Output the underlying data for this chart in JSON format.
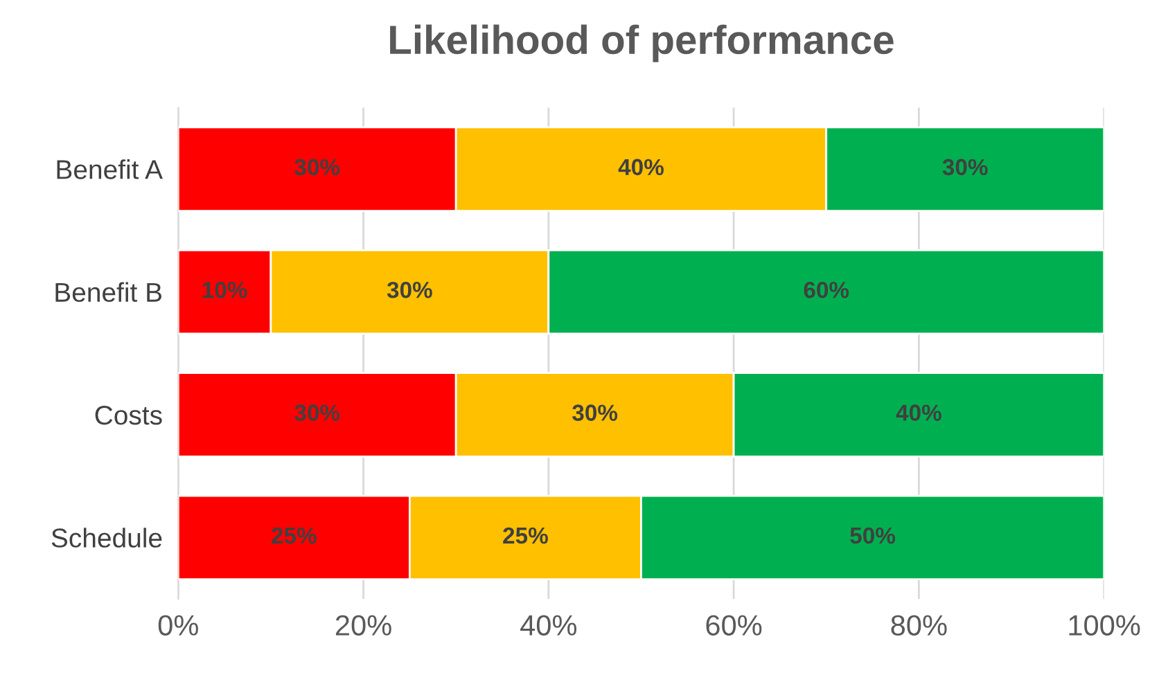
{
  "chart_data": {
    "type": "bar",
    "title": "Likelihood of performance",
    "orientation": "horizontal",
    "stacked": true,
    "categories": [
      "Benefit A",
      "Benefit B",
      "Costs",
      "Schedule"
    ],
    "series": [
      {
        "color": "#ff0000",
        "values": [
          30,
          10,
          30,
          25
        ],
        "value_labels": [
          "30%",
          "10%",
          "30%",
          "25%"
        ]
      },
      {
        "color": "#ffc000",
        "values": [
          40,
          30,
          30,
          25
        ],
        "value_labels": [
          "40%",
          "30%",
          "30%",
          "25%"
        ]
      },
      {
        "color": "#00b050",
        "values": [
          30,
          60,
          40,
          50
        ],
        "value_labels": [
          "30%",
          "60%",
          "40%",
          "50%"
        ]
      }
    ],
    "xlim": [
      0,
      100
    ],
    "xticks": [
      {
        "value": 0,
        "label": "0%"
      },
      {
        "value": 20,
        "label": "20%"
      },
      {
        "value": 40,
        "label": "40%"
      },
      {
        "value": 60,
        "label": "60%"
      },
      {
        "value": 80,
        "label": "80%"
      },
      {
        "value": 100,
        "label": "100%"
      }
    ],
    "grid": "x"
  }
}
